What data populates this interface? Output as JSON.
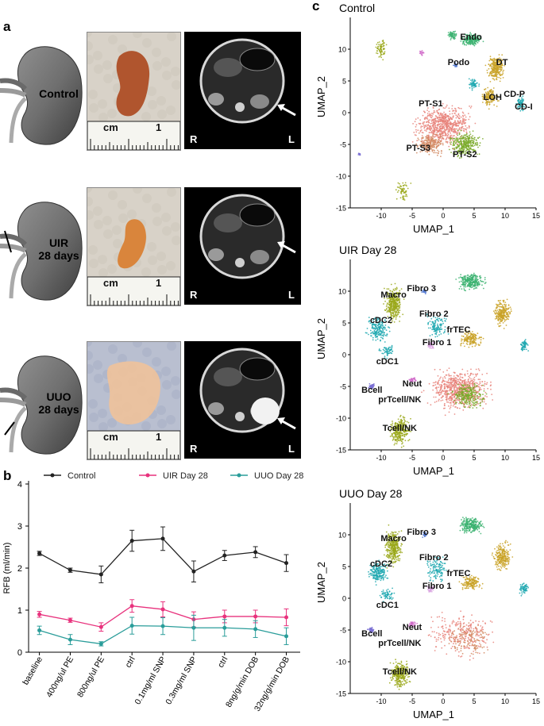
{
  "panels": {
    "a": "a",
    "b": "b",
    "c": "c"
  },
  "panel_a": {
    "rows": [
      {
        "label": "Control"
      },
      {
        "label_line1": "UIR",
        "label_line2": "28 days"
      },
      {
        "label_line1": "UUO",
        "label_line2": "28 days"
      }
    ],
    "ruler_unit": "cm",
    "ruler_number": "1",
    "mri_left": "R",
    "mri_right": "L"
  },
  "chart_data": [
    {
      "type": "line",
      "title": "",
      "xlabel": "",
      "ylabel": "RFB (ml/min)",
      "ylim": [
        0,
        4
      ],
      "yticks": [
        "0",
        "1",
        "2",
        "3",
        "4"
      ],
      "categories": [
        "baseline",
        "400ng/ul PE",
        "800ng/ul PE",
        "ctrl",
        "0.1mg/ml SNP",
        "0.3mg/ml SNP",
        "ctrl",
        "8ng/g/min DOB",
        "32ng/g/min DOB"
      ],
      "legend_position": "top",
      "series": [
        {
          "name": "Control",
          "color": "#222222",
          "values": [
            2.35,
            1.95,
            1.85,
            2.65,
            2.7,
            1.92,
            2.3,
            2.38,
            2.12
          ],
          "errors": [
            0.05,
            0.05,
            0.2,
            0.25,
            0.28,
            0.25,
            0.12,
            0.13,
            0.2
          ]
        },
        {
          "name": "UIR Day 28",
          "color": "#e8327d",
          "values": [
            0.9,
            0.76,
            0.6,
            1.1,
            1.02,
            0.78,
            0.85,
            0.85,
            0.83
          ],
          "errors": [
            0.07,
            0.05,
            0.1,
            0.15,
            0.18,
            0.18,
            0.15,
            0.15,
            0.2
          ]
        },
        {
          "name": "UUO Day 28",
          "color": "#2a9d9a",
          "values": [
            0.52,
            0.3,
            0.2,
            0.63,
            0.62,
            0.58,
            0.58,
            0.55,
            0.38
          ],
          "errors": [
            0.1,
            0.12,
            0.05,
            0.2,
            0.2,
            0.3,
            0.2,
            0.2,
            0.2
          ]
        }
      ]
    },
    {
      "type": "scatter",
      "title": "Control",
      "xlabel": "UMAP_1",
      "ylabel": "UMAP_2",
      "xlim": [
        -15,
        15
      ],
      "ylim": [
        -15,
        15
      ],
      "xticks": [
        "-10",
        "-5",
        "0",
        "5",
        "10",
        "15"
      ],
      "yticks": [
        "10",
        "5",
        "0",
        "-5",
        "-10",
        "-15"
      ],
      "clusters": [
        {
          "label": "Endo",
          "x": 4.5,
          "y": 11.5,
          "color": "#3cb371"
        },
        {
          "label": "DT",
          "x": 9.5,
          "y": 7.5,
          "color": "#c9a227"
        },
        {
          "label": "Podo",
          "x": 2.5,
          "y": 7.5,
          "color": "#5b7fd4"
        },
        {
          "label": "CD-P",
          "x": 11.5,
          "y": 2.5,
          "color": "#e05fa0"
        },
        {
          "label": "CD-I",
          "x": 13,
          "y": 0.5,
          "color": "#1fa8b0"
        },
        {
          "label": "LOH",
          "x": 8,
          "y": 2,
          "color": "#c9a227"
        },
        {
          "label": "PT-S1",
          "x": -2,
          "y": 1,
          "color": "#e8827a"
        },
        {
          "label": "PT-S3",
          "x": -4,
          "y": -6,
          "color": "#d28a62"
        },
        {
          "label": "PT-S2",
          "x": 3.5,
          "y": -7,
          "color": "#7aaa2a"
        }
      ]
    },
    {
      "type": "scatter",
      "title": "UIR Day 28",
      "xlabel": "UMAP_1",
      "ylabel": "UMAP_2",
      "xlim": [
        -15,
        15
      ],
      "ylim": [
        -15,
        15
      ],
      "xticks": [
        "-10",
        "-5",
        "0",
        "5",
        "10",
        "15"
      ],
      "yticks": [
        "10",
        "5",
        "0",
        "-5",
        "-10",
        "-15"
      ],
      "clusters": [
        {
          "label": "Macro",
          "x": -8,
          "y": 9,
          "color": "#9aa81a"
        },
        {
          "label": "Fibro 3",
          "x": -3.5,
          "y": 10,
          "color": "#5b7fd4"
        },
        {
          "label": "cDC2",
          "x": -10,
          "y": 5,
          "color": "#1fa8b0"
        },
        {
          "label": "Fibro 2",
          "x": -1.5,
          "y": 6,
          "color": "#1fa8b0"
        },
        {
          "label": "frTEC",
          "x": 2.5,
          "y": 3.5,
          "color": "#3cb371"
        },
        {
          "label": "Fibro 1",
          "x": -1,
          "y": 1.5,
          "color": "#d9a3e0"
        },
        {
          "label": "cDC1",
          "x": -9,
          "y": -1.5,
          "color": "#1fa8b0"
        },
        {
          "label": "Bcell",
          "x": -11.5,
          "y": -6,
          "color": "#7a70d4"
        },
        {
          "label": "Neut",
          "x": -5,
          "y": -5,
          "color": "#d06bc9"
        },
        {
          "label": "prTcell/NK",
          "x": -7,
          "y": -7.5,
          "color": "#7a70d4"
        },
        {
          "label": "Tcell/NK",
          "x": -7,
          "y": -12,
          "color": "#9aa81a"
        }
      ]
    },
    {
      "type": "scatter",
      "title": "UUO Day 28",
      "xlabel": "UMAP_1",
      "ylabel": "UMAP_2",
      "xlim": [
        -15,
        15
      ],
      "ylim": [
        -15,
        15
      ],
      "xticks": [
        "-10",
        "-5",
        "0",
        "5",
        "10",
        "15"
      ],
      "yticks": [
        "10",
        "5",
        "0",
        "-5",
        "-10",
        "-15"
      ],
      "clusters": [
        {
          "label": "Macro",
          "x": -8,
          "y": 9,
          "color": "#9aa81a"
        },
        {
          "label": "Fibro 3",
          "x": -3.5,
          "y": 10,
          "color": "#5b7fd4"
        },
        {
          "label": "cDC2",
          "x": -10,
          "y": 5,
          "color": "#1fa8b0"
        },
        {
          "label": "Fibro 2",
          "x": -1.5,
          "y": 6,
          "color": "#1fa8b0"
        },
        {
          "label": "frTEC",
          "x": 2.5,
          "y": 3.5,
          "color": "#3cb371"
        },
        {
          "label": "Fibro 1",
          "x": -1,
          "y": 1.5,
          "color": "#d9a3e0"
        },
        {
          "label": "cDC1",
          "x": -9,
          "y": -1.5,
          "color": "#1fa8b0"
        },
        {
          "label": "Bcell",
          "x": -11.5,
          "y": -6,
          "color": "#7a70d4"
        },
        {
          "label": "Neut",
          "x": -5,
          "y": -5,
          "color": "#d06bc9"
        },
        {
          "label": "prTcell/NK",
          "x": -7,
          "y": -7.5,
          "color": "#7a70d4"
        },
        {
          "label": "Tcell/NK",
          "x": -7,
          "y": -12,
          "color": "#9aa81a"
        }
      ]
    }
  ]
}
